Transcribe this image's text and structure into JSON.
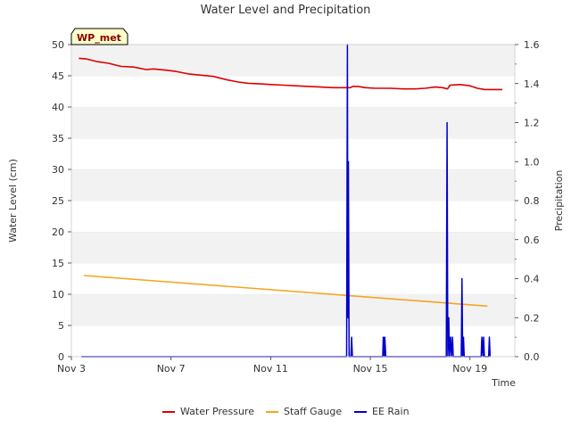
{
  "chart_data": {
    "type": "line",
    "title": "Water Level and Precipitation",
    "badge": "WP_met",
    "xlabel": "Time",
    "ylabel_left": "Water Level (cm)",
    "ylabel_right": "Precipitation",
    "x_range_days": [
      3,
      20.8
    ],
    "ylim_left": [
      0,
      50
    ],
    "ylim_right": [
      0,
      1.6
    ],
    "x_ticks": [
      {
        "day": 3,
        "label": "Nov 3"
      },
      {
        "day": 7,
        "label": "Nov 7"
      },
      {
        "day": 11,
        "label": "Nov 11"
      },
      {
        "day": 15,
        "label": "Nov 15"
      },
      {
        "day": 19,
        "label": "Nov 19"
      }
    ],
    "y_ticks_left": [
      0,
      5,
      10,
      15,
      20,
      25,
      30,
      35,
      40,
      45,
      50
    ],
    "y_ticks_right": [
      "0.0",
      "0.2",
      "0.4",
      "0.6",
      "0.8",
      "1.0",
      "1.2",
      "1.4",
      "1.6"
    ],
    "grid": "horizontal banded",
    "legend_position": "bottom-center",
    "series": [
      {
        "name": "Water Pressure",
        "color": "#dd0000",
        "axis": "left",
        "points": [
          [
            3.3,
            47.8
          ],
          [
            3.6,
            47.7
          ],
          [
            4.0,
            47.3
          ],
          [
            4.5,
            47.0
          ],
          [
            5.0,
            46.5
          ],
          [
            5.5,
            46.4
          ],
          [
            6.0,
            46.0
          ],
          [
            6.3,
            46.1
          ],
          [
            6.8,
            45.9
          ],
          [
            7.2,
            45.7
          ],
          [
            7.7,
            45.3
          ],
          [
            8.2,
            45.1
          ],
          [
            8.7,
            44.9
          ],
          [
            9.2,
            44.4
          ],
          [
            9.7,
            44.0
          ],
          [
            10.1,
            43.8
          ],
          [
            10.6,
            43.7
          ],
          [
            11.0,
            43.6
          ],
          [
            11.5,
            43.5
          ],
          [
            12.0,
            43.4
          ],
          [
            12.5,
            43.3
          ],
          [
            13.0,
            43.2
          ],
          [
            13.5,
            43.1
          ],
          [
            14.0,
            43.1
          ],
          [
            14.2,
            43.1
          ],
          [
            14.3,
            43.3
          ],
          [
            14.5,
            43.3
          ],
          [
            14.8,
            43.1
          ],
          [
            15.2,
            43.0
          ],
          [
            15.8,
            43.0
          ],
          [
            16.3,
            42.9
          ],
          [
            16.8,
            42.9
          ],
          [
            17.2,
            43.0
          ],
          [
            17.6,
            43.2
          ],
          [
            17.9,
            43.1
          ],
          [
            18.1,
            42.9
          ],
          [
            18.2,
            43.5
          ],
          [
            18.6,
            43.6
          ],
          [
            19.0,
            43.4
          ],
          [
            19.3,
            43.0
          ],
          [
            19.6,
            42.8
          ],
          [
            20.0,
            42.8
          ],
          [
            20.3,
            42.8
          ]
        ]
      },
      {
        "name": "Staff Gauge",
        "color": "#f5a623",
        "axis": "left",
        "points": [
          [
            3.5,
            13.0
          ],
          [
            19.7,
            8.1
          ]
        ]
      },
      {
        "name": "EE Rain",
        "color": "#0000cc",
        "axis": "right",
        "points": [
          [
            3.4,
            0.0
          ],
          [
            14.05,
            0.0
          ],
          [
            14.08,
            1.6
          ],
          [
            14.1,
            0.2
          ],
          [
            14.12,
            1.0
          ],
          [
            14.15,
            0.0
          ],
          [
            14.22,
            0.0
          ],
          [
            14.25,
            0.1
          ],
          [
            14.28,
            0.0
          ],
          [
            15.5,
            0.0
          ],
          [
            15.52,
            0.1
          ],
          [
            15.56,
            0.0
          ],
          [
            15.58,
            0.1
          ],
          [
            15.62,
            0.0
          ],
          [
            18.05,
            0.0
          ],
          [
            18.08,
            1.2
          ],
          [
            18.11,
            0.0
          ],
          [
            18.15,
            0.2
          ],
          [
            18.18,
            0.0
          ],
          [
            18.22,
            0.1
          ],
          [
            18.26,
            0.0
          ],
          [
            18.3,
            0.1
          ],
          [
            18.33,
            0.0
          ],
          [
            18.65,
            0.0
          ],
          [
            18.68,
            0.4
          ],
          [
            18.71,
            0.0
          ],
          [
            18.74,
            0.1
          ],
          [
            18.77,
            0.0
          ],
          [
            19.45,
            0.0
          ],
          [
            19.48,
            0.1
          ],
          [
            19.52,
            0.0
          ],
          [
            19.55,
            0.1
          ],
          [
            19.58,
            0.0
          ],
          [
            19.75,
            0.0
          ],
          [
            19.78,
            0.1
          ],
          [
            19.81,
            0.0
          ]
        ]
      }
    ]
  }
}
